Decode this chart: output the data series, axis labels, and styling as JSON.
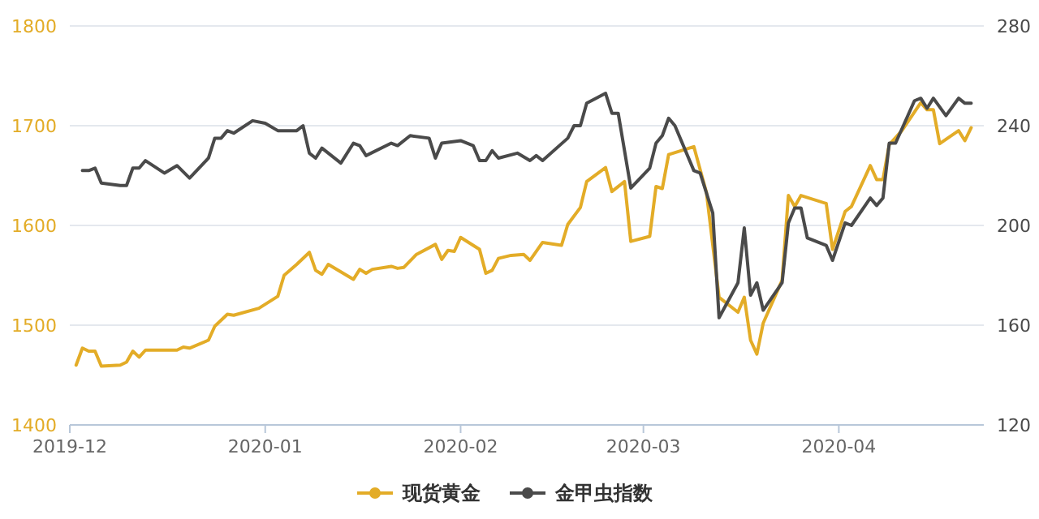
{
  "chart_data": {
    "type": "line",
    "xlim": [
      "2019-12-01",
      "2020-04-24"
    ],
    "xticks": [
      "2019-12",
      "2020-01",
      "2020-02",
      "2020-03",
      "2020-04"
    ],
    "ylim": [
      1400,
      1800
    ],
    "yticks": [
      1400,
      1500,
      1600,
      1700,
      1800
    ],
    "y2lim": [
      120,
      280
    ],
    "y2ticks": [
      120,
      160,
      200,
      240,
      280
    ],
    "grid": "y",
    "legend": "bottom",
    "series": [
      {
        "name": "现货黄金",
        "color": "#e3ac27",
        "x": [
          "2019-12-02",
          "2019-12-03",
          "2019-12-04",
          "2019-12-05",
          "2019-12-06",
          "2019-12-09",
          "2019-12-10",
          "2019-12-11",
          "2019-12-12",
          "2019-12-13",
          "2019-12-18",
          "2019-12-19",
          "2019-12-20",
          "2019-12-23",
          "2019-12-24",
          "2019-12-26",
          "2019-12-27",
          "2019-12-31",
          "2020-01-03",
          "2020-01-04",
          "2020-01-06",
          "2020-01-08",
          "2020-01-09",
          "2020-01-10",
          "2020-01-11",
          "2020-01-15",
          "2020-01-16",
          "2020-01-17",
          "2020-01-18",
          "2020-01-21",
          "2020-01-22",
          "2020-01-23",
          "2020-01-25",
          "2020-01-28",
          "2020-01-29",
          "2020-01-30",
          "2020-01-31",
          "2020-02-01",
          "2020-02-04",
          "2020-02-05",
          "2020-02-06",
          "2020-02-07",
          "2020-02-09",
          "2020-02-11",
          "2020-02-12",
          "2020-02-14",
          "2020-02-17",
          "2020-02-18",
          "2020-02-20",
          "2020-02-21",
          "2020-02-24",
          "2020-02-25",
          "2020-02-27",
          "2020-02-28",
          "2020-03-02",
          "2020-03-03",
          "2020-03-04",
          "2020-03-05",
          "2020-03-09",
          "2020-03-11",
          "2020-03-13",
          "2020-03-16",
          "2020-03-17",
          "2020-03-18",
          "2020-03-19",
          "2020-03-20",
          "2020-03-23",
          "2020-03-24",
          "2020-03-25",
          "2020-03-26",
          "2020-03-30",
          "2020-03-31",
          "2020-04-02",
          "2020-04-03",
          "2020-04-06",
          "2020-04-07",
          "2020-04-08",
          "2020-04-09",
          "2020-04-11",
          "2020-04-14",
          "2020-04-15",
          "2020-04-16",
          "2020-04-17",
          "2020-04-20",
          "2020-04-21",
          "2020-04-22"
        ],
        "values": [
          1460,
          1477,
          1474,
          1474,
          1459,
          1460,
          1463,
          1474,
          1468,
          1475,
          1475,
          1478,
          1477,
          1485,
          1499,
          1511,
          1510,
          1517,
          1529,
          1550,
          1561,
          1573,
          1555,
          1551,
          1561,
          1546,
          1556,
          1552,
          1556,
          1559,
          1557,
          1558,
          1571,
          1581,
          1566,
          1575,
          1574,
          1588,
          1576,
          1552,
          1555,
          1567,
          1570,
          1571,
          1565,
          1583,
          1580,
          1601,
          1618,
          1644,
          1658,
          1634,
          1644,
          1584,
          1589,
          1639,
          1637,
          1671,
          1679,
          1633,
          1528,
          1513,
          1528,
          1485,
          1471,
          1502,
          1545,
          1630,
          1619,
          1630,
          1622,
          1576,
          1614,
          1619,
          1660,
          1646,
          1646,
          1681,
          1695,
          1723,
          1716,
          1716,
          1682,
          1695,
          1685,
          1698
        ]
      },
      {
        "name": "金甲虫指数",
        "color": "#4a4a4a",
        "axis": "y2",
        "x": [
          "2019-12-03",
          "2019-12-04",
          "2019-12-05",
          "2019-12-06",
          "2019-12-09",
          "2019-12-10",
          "2019-12-11",
          "2019-12-12",
          "2019-12-13",
          "2019-12-16",
          "2019-12-18",
          "2019-12-20",
          "2019-12-23",
          "2019-12-24",
          "2019-12-25",
          "2019-12-26",
          "2019-12-27",
          "2019-12-30",
          "2020-01-01",
          "2020-01-03",
          "2020-01-06",
          "2020-01-07",
          "2020-01-08",
          "2020-01-09",
          "2020-01-10",
          "2020-01-13",
          "2020-01-15",
          "2020-01-16",
          "2020-01-17",
          "2020-01-21",
          "2020-01-22",
          "2020-01-24",
          "2020-01-27",
          "2020-01-28",
          "2020-01-29",
          "2020-02-01",
          "2020-02-03",
          "2020-02-04",
          "2020-02-05",
          "2020-02-06",
          "2020-02-07",
          "2020-02-10",
          "2020-02-12",
          "2020-02-13",
          "2020-02-14",
          "2020-02-18",
          "2020-02-19",
          "2020-02-20",
          "2020-02-21",
          "2020-02-24",
          "2020-02-25",
          "2020-02-26",
          "2020-02-28",
          "2020-03-02",
          "2020-03-03",
          "2020-03-04",
          "2020-03-05",
          "2020-03-06",
          "2020-03-09",
          "2020-03-10",
          "2020-03-12",
          "2020-03-13",
          "2020-03-16",
          "2020-03-17",
          "2020-03-18",
          "2020-03-19",
          "2020-03-20",
          "2020-03-23",
          "2020-03-24",
          "2020-03-25",
          "2020-03-26",
          "2020-03-27",
          "2020-03-30",
          "2020-03-31",
          "2020-04-02",
          "2020-04-03",
          "2020-04-06",
          "2020-04-07",
          "2020-04-08",
          "2020-04-09",
          "2020-04-10",
          "2020-04-13",
          "2020-04-14",
          "2020-04-15",
          "2020-04-16",
          "2020-04-18",
          "2020-04-20",
          "2020-04-21",
          "2020-04-22"
        ],
        "values": [
          222,
          222,
          223,
          217,
          216,
          216,
          223,
          223,
          226,
          221,
          224,
          219,
          227,
          235,
          235,
          238,
          237,
          242,
          241,
          238,
          238,
          240,
          229,
          227,
          231,
          225,
          233,
          232,
          228,
          233,
          232,
          236,
          235,
          227,
          233,
          234,
          232,
          226,
          226,
          230,
          227,
          229,
          226,
          228,
          226,
          235,
          240,
          240,
          249,
          253,
          245,
          245,
          215,
          223,
          233,
          236,
          243,
          240,
          222,
          221,
          205,
          163,
          177,
          199,
          172,
          177,
          166,
          177,
          201,
          207,
          207,
          195,
          192,
          186,
          201,
          200,
          211,
          208,
          211,
          233,
          233,
          250,
          251,
          247,
          251,
          244,
          251,
          249,
          249
        ]
      }
    ]
  }
}
